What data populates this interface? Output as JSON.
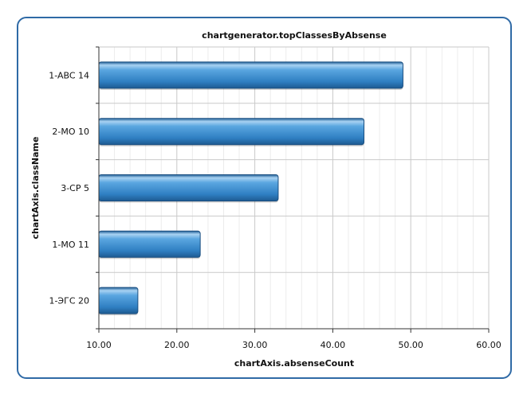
{
  "chart_data": {
    "type": "bar",
    "orientation": "horizontal",
    "title": "chartgenerator.topClassesByAbsense",
    "xlabel": "chartAxis.absenseCount",
    "ylabel": "chartAxis.className",
    "categories": [
      "1-ABC 14",
      "2-MO 10",
      "3-CP 5",
      "1-MO 11",
      "1-ЭГС 20"
    ],
    "values": [
      49,
      44,
      33,
      23,
      15
    ],
    "xlim": [
      10,
      60
    ],
    "xticks": [
      "10.00",
      "20.00",
      "30.00",
      "40.00",
      "50.00",
      "60.00"
    ],
    "grid": true,
    "bar_color": "#3d8fd1"
  }
}
